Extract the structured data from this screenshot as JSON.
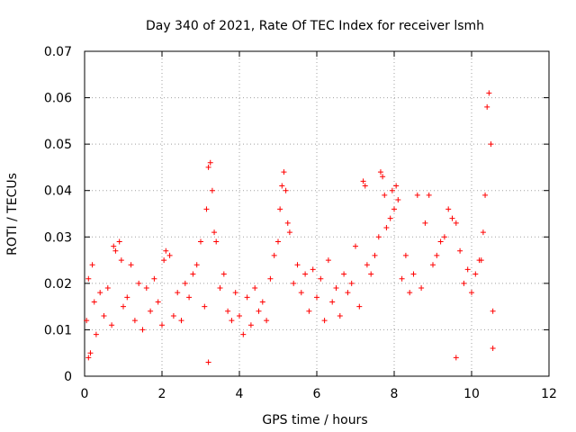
{
  "chart_data": {
    "type": "scatter",
    "title": "Day 340 of 2021, Rate Of TEC Index for receiver lsmh",
    "xlabel": "GPS time / hours",
    "ylabel": "ROTI / TECUs",
    "xlim": [
      0,
      12
    ],
    "ylim": [
      0,
      0.07
    ],
    "x_ticks": [
      0,
      2,
      4,
      6,
      8,
      10,
      12
    ],
    "x_tick_labels": [
      "0",
      "2",
      "4",
      "6",
      "8",
      "10",
      "12"
    ],
    "y_ticks": [
      0,
      0.01,
      0.02,
      0.03,
      0.04,
      0.05,
      0.06,
      0.07
    ],
    "y_tick_labels": [
      "0",
      "0.01",
      "0.02",
      "0.03",
      "0.04",
      "0.05",
      "0.06",
      "0.07"
    ],
    "grid": true,
    "marker": "+",
    "series": [
      {
        "name": "ROTI",
        "color": "#ff0000",
        "points": [
          [
            0.05,
            0.012
          ],
          [
            0.1,
            0.021
          ],
          [
            0.15,
            0.005
          ],
          [
            0.2,
            0.024
          ],
          [
            0.25,
            0.016
          ],
          [
            0.3,
            0.009
          ],
          [
            0.4,
            0.018
          ],
          [
            0.5,
            0.013
          ],
          [
            0.6,
            0.019
          ],
          [
            0.7,
            0.011
          ],
          [
            0.75,
            0.028
          ],
          [
            0.8,
            0.027
          ],
          [
            0.9,
            0.029
          ],
          [
            0.95,
            0.025
          ],
          [
            1.0,
            0.015
          ],
          [
            1.1,
            0.017
          ],
          [
            1.2,
            0.024
          ],
          [
            1.3,
            0.012
          ],
          [
            1.4,
            0.02
          ],
          [
            1.5,
            0.01
          ],
          [
            1.6,
            0.019
          ],
          [
            1.7,
            0.014
          ],
          [
            1.8,
            0.021
          ],
          [
            1.9,
            0.016
          ],
          [
            2.0,
            0.011
          ],
          [
            2.05,
            0.025
          ],
          [
            2.1,
            0.027
          ],
          [
            2.2,
            0.026
          ],
          [
            2.3,
            0.013
          ],
          [
            2.4,
            0.018
          ],
          [
            2.5,
            0.012
          ],
          [
            2.6,
            0.02
          ],
          [
            2.7,
            0.017
          ],
          [
            2.8,
            0.022
          ],
          [
            2.9,
            0.024
          ],
          [
            3.0,
            0.029
          ],
          [
            3.1,
            0.015
          ],
          [
            3.15,
            0.036
          ],
          [
            3.2,
            0.045
          ],
          [
            3.25,
            0.046
          ],
          [
            3.3,
            0.04
          ],
          [
            3.35,
            0.031
          ],
          [
            3.4,
            0.029
          ],
          [
            3.5,
            0.019
          ],
          [
            3.6,
            0.022
          ],
          [
            3.7,
            0.014
          ],
          [
            3.8,
            0.012
          ],
          [
            3.9,
            0.018
          ],
          [
            4.0,
            0.013
          ],
          [
            4.1,
            0.009
          ],
          [
            4.2,
            0.017
          ],
          [
            4.3,
            0.011
          ],
          [
            4.4,
            0.019
          ],
          [
            4.5,
            0.014
          ],
          [
            4.6,
            0.016
          ],
          [
            4.7,
            0.012
          ],
          [
            4.8,
            0.021
          ],
          [
            4.9,
            0.026
          ],
          [
            5.0,
            0.029
          ],
          [
            5.05,
            0.036
          ],
          [
            5.1,
            0.041
          ],
          [
            5.15,
            0.044
          ],
          [
            5.2,
            0.04
          ],
          [
            5.25,
            0.033
          ],
          [
            5.3,
            0.031
          ],
          [
            5.4,
            0.02
          ],
          [
            5.5,
            0.024
          ],
          [
            5.6,
            0.018
          ],
          [
            5.7,
            0.022
          ],
          [
            5.8,
            0.014
          ],
          [
            5.9,
            0.023
          ],
          [
            6.0,
            0.017
          ],
          [
            6.1,
            0.021
          ],
          [
            6.2,
            0.012
          ],
          [
            6.3,
            0.025
          ],
          [
            6.4,
            0.016
          ],
          [
            6.5,
            0.019
          ],
          [
            6.6,
            0.013
          ],
          [
            6.7,
            0.022
          ],
          [
            6.8,
            0.018
          ],
          [
            6.9,
            0.02
          ],
          [
            7.0,
            0.028
          ],
          [
            7.1,
            0.015
          ],
          [
            7.2,
            0.042
          ],
          [
            7.25,
            0.041
          ],
          [
            7.3,
            0.024
          ],
          [
            7.4,
            0.022
          ],
          [
            7.5,
            0.026
          ],
          [
            7.6,
            0.03
          ],
          [
            7.65,
            0.044
          ],
          [
            7.7,
            0.043
          ],
          [
            7.75,
            0.039
          ],
          [
            7.8,
            0.032
          ],
          [
            7.9,
            0.034
          ],
          [
            7.95,
            0.04
          ],
          [
            8.0,
            0.036
          ],
          [
            8.05,
            0.041
          ],
          [
            8.1,
            0.038
          ],
          [
            8.2,
            0.021
          ],
          [
            8.3,
            0.026
          ],
          [
            8.4,
            0.018
          ],
          [
            8.5,
            0.022
          ],
          [
            8.6,
            0.039
          ],
          [
            8.7,
            0.019
          ],
          [
            8.8,
            0.033
          ],
          [
            8.9,
            0.039
          ],
          [
            9.0,
            0.024
          ],
          [
            9.1,
            0.026
          ],
          [
            9.2,
            0.029
          ],
          [
            9.3,
            0.03
          ],
          [
            9.4,
            0.036
          ],
          [
            9.5,
            0.034
          ],
          [
            9.6,
            0.033
          ],
          [
            9.7,
            0.027
          ],
          [
            9.8,
            0.02
          ],
          [
            9.9,
            0.023
          ],
          [
            10.0,
            0.018
          ],
          [
            10.1,
            0.022
          ],
          [
            10.2,
            0.025
          ],
          [
            10.25,
            0.025
          ],
          [
            10.3,
            0.031
          ],
          [
            10.35,
            0.039
          ],
          [
            10.4,
            0.058
          ],
          [
            10.45,
            0.061
          ],
          [
            10.5,
            0.05
          ],
          [
            10.55,
            0.014
          ],
          [
            10.55,
            0.006
          ],
          [
            3.2,
            0.003
          ],
          [
            9.6,
            0.004
          ],
          [
            0.1,
            0.004
          ]
        ]
      }
    ]
  }
}
